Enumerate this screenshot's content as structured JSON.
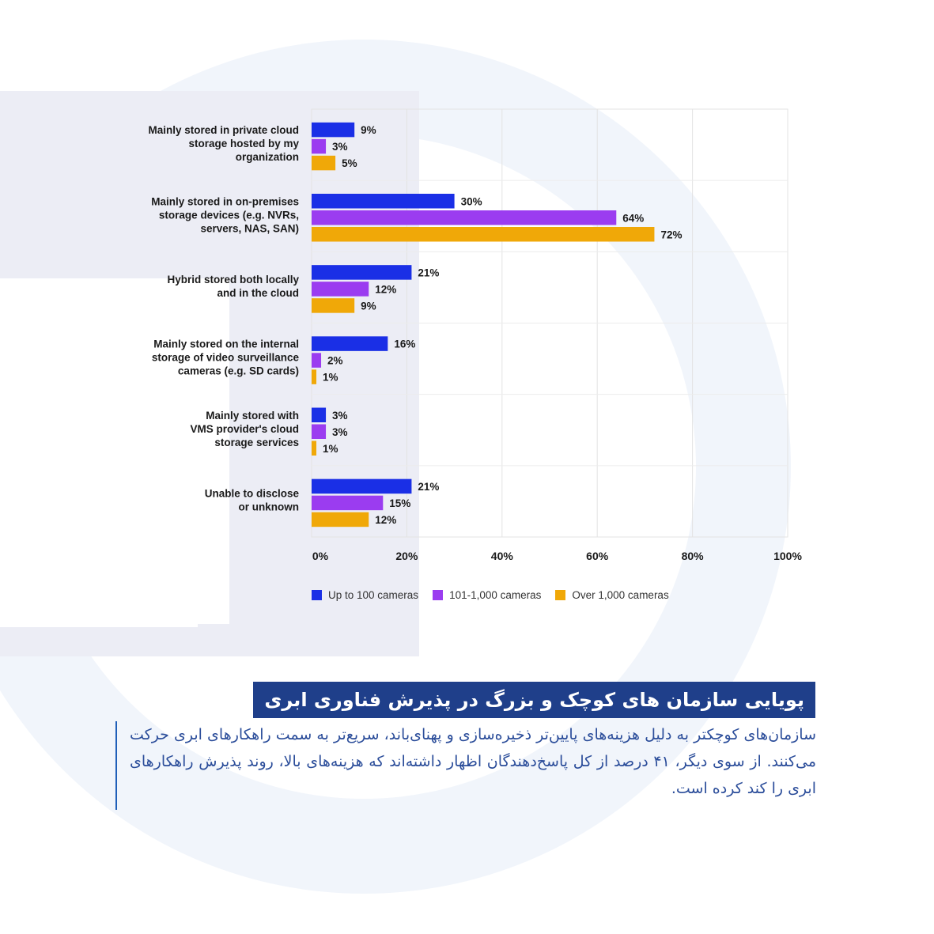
{
  "colors": {
    "series1": "#1a2fe6",
    "series2": "#9b3cf0",
    "series3": "#f0a808",
    "title_bg": "#1f3f8a",
    "body_text": "#2b4d9a",
    "decor": "#eef2f8"
  },
  "chart_data": {
    "type": "bar",
    "orientation": "horizontal",
    "categories": [
      [
        "Mainly stored in private cloud",
        "storage hosted by my",
        "organization"
      ],
      [
        "Mainly stored in on-premises",
        "storage devices (e.g. NVRs,",
        "servers, NAS, SAN)"
      ],
      [
        "Hybrid stored both locally",
        "and in the cloud"
      ],
      [
        "Mainly stored on the internal",
        "storage of video surveillance",
        "cameras (e.g. SD cards)"
      ],
      [
        "Mainly stored with",
        "VMS provider's cloud",
        "storage services"
      ],
      [
        "Unable to disclose",
        "or unknown"
      ]
    ],
    "series": [
      {
        "name": "Up to 100 cameras",
        "values": [
          9,
          30,
          21,
          16,
          3,
          21
        ]
      },
      {
        "name": "101-1,000 cameras",
        "values": [
          3,
          64,
          12,
          2,
          3,
          15
        ]
      },
      {
        "name": "Over 1,000 cameras",
        "values": [
          5,
          72,
          9,
          1,
          1,
          12
        ]
      }
    ],
    "xlim": [
      0,
      100
    ],
    "xticks": [
      "0%",
      "20%",
      "40%",
      "60%",
      "80%",
      "100%"
    ],
    "value_suffix": "%",
    "legend_position": "bottom",
    "grid": true
  },
  "legend": {
    "items": [
      "Up to 100 cameras",
      "101-1,000 cameras",
      "Over 1,000 cameras"
    ]
  },
  "title": "پویایی سازمان های کوچک و بزرگ در پذیرش فناوری ابری",
  "body": "سازمان‌های کوچکتر به دلیل هزینه‌های پایین‌تر ذخیره‌سازی و پهنای‌باند، سریع‌تر به سمت راهکارهای ابری حرکت می‌کنند. از سوی دیگر، ۴۱ درصد از کل پاسخ‌دهندگان اظهار داشته‌اند که هزینه‌های بالا، روند پذیرش راهکارهای ابری را کند کرده است."
}
